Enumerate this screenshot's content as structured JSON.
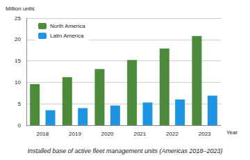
{
  "chart_data": {
    "type": "bar",
    "title": "Installed base of active fleet management units (Americas 2018–2023)",
    "xlabel": "Year",
    "ylabel": "Million units",
    "categories": [
      "2018",
      "2019",
      "2020",
      "2021",
      "2022",
      "2023"
    ],
    "series": [
      {
        "name": "North America",
        "color": "#4c8a3c",
        "values": [
          9.6,
          11.2,
          13.1,
          15.2,
          17.9,
          20.8
        ]
      },
      {
        "name": "Latin America",
        "color": "#1f94e0",
        "values": [
          3.5,
          4.0,
          4.6,
          5.3,
          6.0,
          6.9
        ]
      }
    ],
    "ylim": [
      0,
      25
    ],
    "yticks": [
      0,
      5,
      10,
      15,
      20,
      25
    ],
    "grid": true,
    "legend": "top-left"
  }
}
